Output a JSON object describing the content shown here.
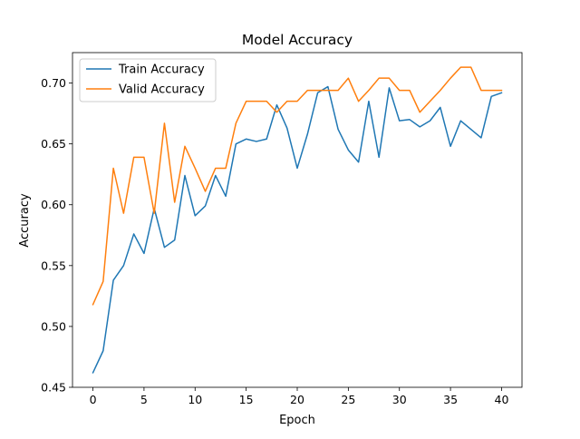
{
  "chart_data": {
    "type": "line",
    "title": "Model Accuracy",
    "xlabel": "Epoch",
    "ylabel": "Accuracy",
    "xlim": [
      -2,
      42
    ],
    "ylim": [
      0.45,
      0.725
    ],
    "xticks": [
      0,
      5,
      10,
      15,
      20,
      25,
      30,
      35,
      40
    ],
    "yticks": [
      0.45,
      0.5,
      0.55,
      0.6,
      0.65,
      0.7
    ],
    "grid": false,
    "legend_position": "top-left",
    "x": [
      0,
      1,
      2,
      3,
      4,
      5,
      6,
      7,
      8,
      9,
      10,
      11,
      12,
      13,
      14,
      15,
      16,
      17,
      18,
      19,
      20,
      21,
      22,
      23,
      24,
      25,
      26,
      27,
      28,
      29,
      30,
      31,
      32,
      33,
      34,
      35,
      36,
      37,
      38,
      39,
      40
    ],
    "series": [
      {
        "name": "Train Accuracy",
        "color": "#1f77b4",
        "values": [
          0.462,
          0.48,
          0.538,
          0.55,
          0.576,
          0.56,
          0.597,
          0.565,
          0.571,
          0.624,
          0.591,
          0.599,
          0.624,
          0.607,
          0.65,
          0.654,
          0.652,
          0.654,
          0.682,
          0.663,
          0.63,
          0.658,
          0.692,
          0.697,
          0.662,
          0.645,
          0.635,
          0.685,
          0.639,
          0.696,
          0.669,
          0.67,
          0.664,
          0.669,
          0.68,
          0.648,
          0.669,
          0.662,
          0.655,
          0.689,
          0.692
        ]
      },
      {
        "name": "Valid Accuracy",
        "color": "#ff7f0e",
        "values": [
          0.518,
          0.537,
          0.63,
          0.593,
          0.639,
          0.639,
          0.593,
          0.667,
          0.602,
          0.648,
          0.63,
          0.611,
          0.63,
          0.63,
          0.667,
          0.685,
          0.685,
          0.685,
          0.676,
          0.685,
          0.685,
          0.694,
          0.694,
          0.694,
          0.694,
          0.704,
          0.685,
          0.694,
          0.704,
          0.704,
          0.694,
          0.694,
          0.676,
          0.685,
          0.694,
          0.704,
          0.713,
          0.713,
          0.694,
          0.694,
          0.694
        ]
      }
    ]
  }
}
